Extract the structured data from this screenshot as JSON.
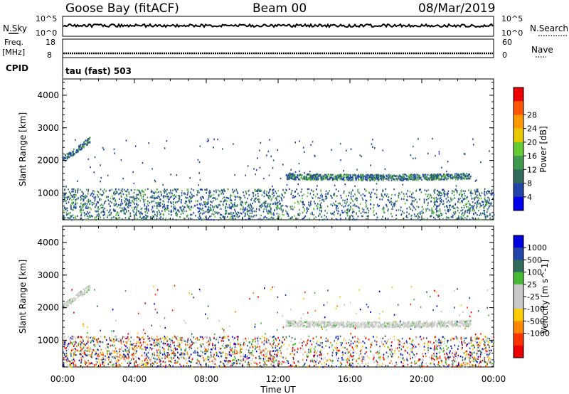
{
  "header": {
    "site": "Goose Bay (fitACF)",
    "beam": "Beam 00",
    "date": "08/Mar/2019"
  },
  "status_panels": {
    "nsky_label": "N.Sky",
    "nsearch_label": "N.Search",
    "noise_ticks_left": [
      "10^5",
      "10^0"
    ],
    "noise_ticks_right": [
      "10^5",
      "10^0"
    ],
    "freq_label_top": "Freq.",
    "freq_label_unit": "[MHz]",
    "freq_ticks": [
      "18",
      "8"
    ],
    "nave_label": "Nave",
    "nave_ticks": [
      "60",
      "0"
    ],
    "cpid_label": "CPID",
    "cpid_value": "tau (fast) 503"
  },
  "chart_data": [
    {
      "type": "heatmap",
      "name": "power",
      "ylabel": "Slant Range [km]",
      "xlabel": "Time UT",
      "x_range_hours": [
        0,
        24
      ],
      "x_ticks": [
        "00:00",
        "04:00",
        "08:00",
        "12:00",
        "16:00",
        "20:00",
        "00:00"
      ],
      "y_range_km": [
        180,
        4500
      ],
      "y_ticks": [
        1000,
        2000,
        3000,
        4000
      ],
      "colorbar": {
        "label": "Power [dB]",
        "ticks": [
          "4",
          "8",
          "12",
          "16",
          "20",
          "24",
          "28"
        ],
        "colors": [
          "#0000ee",
          "#2244aa",
          "#2f6a5a",
          "#3f9a50",
          "#66cc33",
          "#e8c800",
          "#ff9900",
          "#ff5500",
          "#ee0000"
        ]
      }
    },
    {
      "type": "heatmap",
      "name": "velocity",
      "ylabel": "Slant Range [km]",
      "xlabel": "Time UT",
      "x_range_hours": [
        0,
        24
      ],
      "x_ticks": [
        "00:00",
        "04:00",
        "08:00",
        "12:00",
        "16:00",
        "20:00",
        "00:00"
      ],
      "y_range_km": [
        180,
        4500
      ],
      "y_ticks": [
        1000,
        2000,
        3000,
        4000
      ],
      "colorbar": {
        "label": "Velocity [m s^-1]",
        "ticks": [
          "1000",
          "500",
          "100",
          "25",
          "-25",
          "-100",
          "-500",
          "-1000"
        ],
        "colors": [
          "#0000dd",
          "#2244aa",
          "#2f6a5a",
          "#44bb33",
          "#c8c8c8",
          "#c8c8c8",
          "#ffcc00",
          "#ff8800",
          "#ff3300",
          "#ee0000"
        ]
      }
    }
  ],
  "footer": {
    "xaxis_label": "Time UT"
  }
}
